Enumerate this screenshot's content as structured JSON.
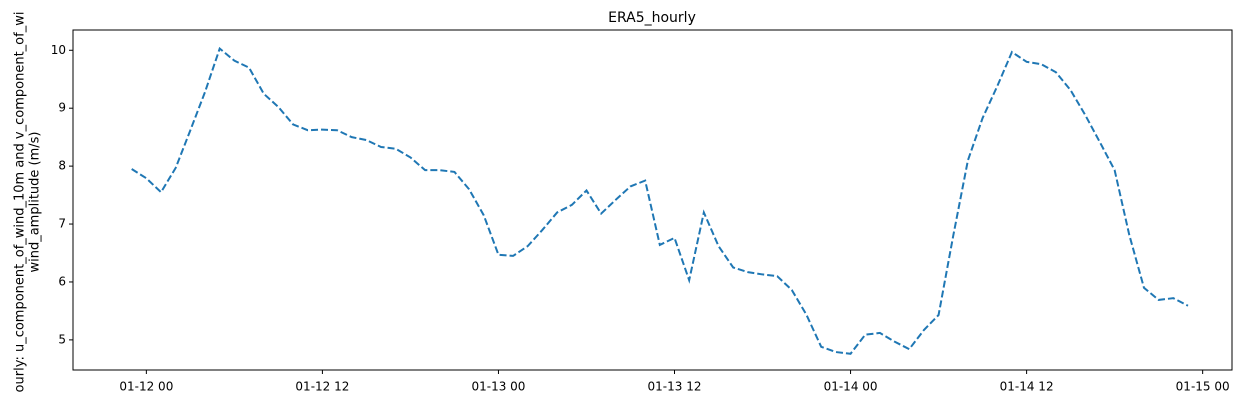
{
  "chart_data": {
    "type": "line",
    "title": "ERA5_hourly",
    "ylabel": [
      "ourly: u_component_of_wind_10m and v_component_of_wi",
      "wind_amplitude (m/s)"
    ],
    "x": [
      "01-11 23",
      "01-12 00",
      "01-12 01",
      "01-12 02",
      "01-12 03",
      "01-12 04",
      "01-12 05",
      "01-12 06",
      "01-12 07",
      "01-12 08",
      "01-12 09",
      "01-12 10",
      "01-12 11",
      "01-12 12",
      "01-12 13",
      "01-12 14",
      "01-12 15",
      "01-12 16",
      "01-12 17",
      "01-12 18",
      "01-12 19",
      "01-12 20",
      "01-12 21",
      "01-12 22",
      "01-12 23",
      "01-13 00",
      "01-13 01",
      "01-13 02",
      "01-13 03",
      "01-13 04",
      "01-13 05",
      "01-13 06",
      "01-13 07",
      "01-13 08",
      "01-13 09",
      "01-13 10",
      "01-13 11",
      "01-13 12",
      "01-13 13",
      "01-13 14",
      "01-13 15",
      "01-13 16",
      "01-13 17",
      "01-13 18",
      "01-13 19",
      "01-13 20",
      "01-13 21",
      "01-13 22",
      "01-13 23",
      "01-14 00",
      "01-14 01",
      "01-14 02",
      "01-14 03",
      "01-14 04",
      "01-14 05",
      "01-14 06",
      "01-14 07",
      "01-14 08",
      "01-14 09",
      "01-14 10",
      "01-14 11",
      "01-14 12",
      "01-14 13",
      "01-14 14",
      "01-14 15",
      "01-14 16",
      "01-14 17",
      "01-14 18",
      "01-14 19",
      "01-14 20",
      "01-14 21",
      "01-14 22",
      "01-14 23"
    ],
    "series": [
      {
        "name": "wind_amplitude",
        "color": "#1f77b4",
        "dashed": true,
        "values": [
          7.95,
          7.79,
          7.55,
          7.97,
          8.62,
          9.28,
          10.03,
          9.82,
          9.7,
          9.25,
          9.02,
          8.72,
          8.62,
          8.63,
          8.62,
          8.5,
          8.45,
          8.33,
          8.3,
          8.15,
          7.93,
          7.93,
          7.9,
          7.6,
          7.15,
          6.47,
          6.45,
          6.62,
          6.9,
          7.2,
          7.33,
          7.58,
          7.18,
          7.42,
          7.65,
          7.75,
          6.64,
          6.76,
          6.03,
          7.2,
          6.62,
          6.25,
          6.17,
          6.13,
          6.1,
          5.86,
          5.43,
          4.88,
          4.79,
          4.76,
          5.09,
          5.12,
          4.97,
          4.84,
          5.17,
          5.43,
          6.8,
          8.1,
          8.83,
          9.38,
          9.97,
          9.8,
          9.76,
          9.62,
          9.31,
          8.88,
          8.41,
          7.93,
          6.81,
          5.9,
          5.69,
          5.72,
          5.59
        ]
      }
    ],
    "xlim": [
      "01-11 19",
      "01-15 02"
    ],
    "xticks": [
      "01-12 00",
      "01-12 12",
      "01-13 00",
      "01-13 12",
      "01-14 00",
      "01-14 12",
      "01-15 00"
    ],
    "ylim": [
      4.48,
      10.35
    ],
    "yticks": [
      5,
      6,
      7,
      8,
      9,
      10
    ],
    "grid": false
  }
}
